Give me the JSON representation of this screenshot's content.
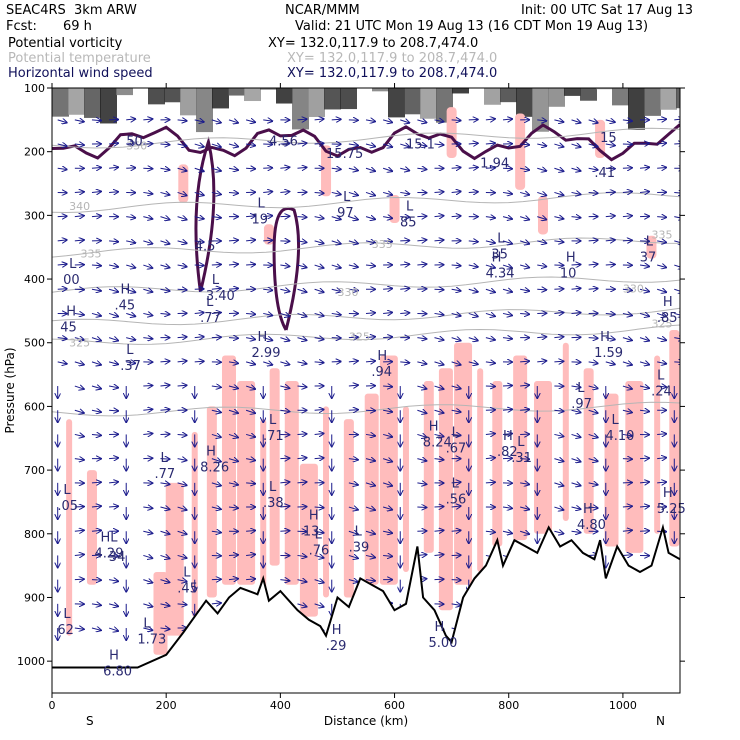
{
  "header": {
    "model": "SEAC4RS  3km ARW",
    "center": "NCAR/MMM",
    "init": "Init: 00 UTC Sat 17 Aug 13",
    "fcst_label": "Fcst:",
    "fcst_value": "69 h",
    "valid": "Valid: 21 UTC Mon 19 Aug 13 (16 CDT Mon 19 Aug 13)",
    "fields": [
      {
        "name": "Potential vorticity",
        "xy": "XY= 132.0,117.9 to 208.7,474.0",
        "color": "#000000"
      },
      {
        "name": "Potential temperature",
        "xy": "XY= 132.0,117.9 to 208.7,474.0",
        "color": "#b8b8b8"
      },
      {
        "name": "Horizontal wind speed",
        "xy": "XY= 132.0,117.9 to 208.7,474.0",
        "color": "#10105a"
      }
    ]
  },
  "chart_data": {
    "type": "heatmap",
    "xlabel": "Distance (km)",
    "ylabel": "Pressure (hPa)",
    "xlim": [
      0,
      1100
    ],
    "ylim": [
      1050,
      100
    ],
    "x_ticks": [
      0,
      200,
      400,
      600,
      800,
      1000
    ],
    "y_ticks": [
      100,
      200,
      300,
      400,
      500,
      600,
      700,
      800,
      900,
      1000
    ],
    "x_end_labels": {
      "left": "S",
      "right": "N"
    },
    "colors": {
      "pv_positive": "#ffbcbc",
      "pv_contour": "#4a0f4a",
      "theta": "#b5b5b5",
      "wind": "#1a1a8c",
      "terrain": "#000000"
    },
    "theta_contours": [
      {
        "label": "325",
        "x": 30,
        "p": 500
      },
      {
        "label": "325",
        "x": 520,
        "p": 490
      },
      {
        "label": "325",
        "x": 1050,
        "p": 470
      },
      {
        "label": "330",
        "x": 500,
        "p": 420
      },
      {
        "label": "330",
        "x": 1000,
        "p": 415
      },
      {
        "label": "335",
        "x": 50,
        "p": 360
      },
      {
        "label": "335",
        "x": 560,
        "p": 345
      },
      {
        "label": "335",
        "x": 1050,
        "p": 330
      },
      {
        "label": "340",
        "x": 30,
        "p": 285
      },
      {
        "label": "350",
        "x": 130,
        "p": 190
      }
    ],
    "extrema": [
      {
        "kind": "L",
        "value": "19",
        "x": 360,
        "p": 300
      },
      {
        "kind": "L",
        "value": "97",
        "x": 510,
        "p": 290
      },
      {
        "kind": "L",
        "value": "85",
        "x": 620,
        "p": 305
      },
      {
        "kind": "L",
        "value": "35",
        "x": 780,
        "p": 355
      },
      {
        "kind": "H",
        "value": "4.34",
        "x": 770,
        "p": 385
      },
      {
        "kind": "H",
        "value": "10",
        "x": 900,
        "p": 385
      },
      {
        "kind": "L",
        "value": "37",
        "x": 1040,
        "p": 360
      },
      {
        "kind": "L",
        "value": "00",
        "x": 30,
        "p": 395
      },
      {
        "kind": "H",
        "value": ".45",
        "x": 120,
        "p": 435
      },
      {
        "kind": "L",
        "value": "3.40",
        "x": 280,
        "p": 420
      },
      {
        "kind": "L",
        "value": ".77",
        "x": 270,
        "p": 455
      },
      {
        "kind": "H",
        "value": "45",
        "x": 25,
        "p": 470
      },
      {
        "kind": "L",
        "value": ".37",
        "x": 130,
        "p": 530
      },
      {
        "kind": "H",
        "value": "2.99",
        "x": 360,
        "p": 510
      },
      {
        "kind": "H",
        "value": ".94",
        "x": 570,
        "p": 540
      },
      {
        "kind": "H",
        "value": "1.59",
        "x": 960,
        "p": 510
      },
      {
        "kind": "H",
        "value": ".85",
        "x": 1070,
        "p": 455
      },
      {
        "kind": "L",
        "value": ".24",
        "x": 1060,
        "p": 570
      },
      {
        "kind": "L",
        "value": ".97",
        "x": 920,
        "p": 590
      },
      {
        "kind": "L",
        "value": "4.10",
        "x": 980,
        "p": 640
      },
      {
        "kind": "L",
        "value": ".71",
        "x": 380,
        "p": 640
      },
      {
        "kind": "H",
        "value": "8.24",
        "x": 660,
        "p": 650
      },
      {
        "kind": "L",
        "value": ".67",
        "x": 700,
        "p": 660
      },
      {
        "kind": "H",
        "value": ".82",
        "x": 790,
        "p": 665
      },
      {
        "kind": "L",
        "value": ".31",
        "x": 815,
        "p": 675
      },
      {
        "kind": "L",
        "value": ".77",
        "x": 190,
        "p": 700
      },
      {
        "kind": "H",
        "value": "8.26",
        "x": 270,
        "p": 690
      },
      {
        "kind": "L",
        "value": ".05",
        "x": 20,
        "p": 750
      },
      {
        "kind": "L",
        "value": ".38",
        "x": 380,
        "p": 745
      },
      {
        "kind": "L",
        "value": ".56",
        "x": 700,
        "p": 740
      },
      {
        "kind": "H",
        "value": "4.80",
        "x": 930,
        "p": 780
      },
      {
        "kind": "H",
        "value": "5.25",
        "x": 1070,
        "p": 755
      },
      {
        "kind": "H",
        "value": "13",
        "x": 450,
        "p": 790
      },
      {
        "kind": "L",
        "value": ".76",
        "x": 460,
        "p": 820
      },
      {
        "kind": "L",
        "value": ".39",
        "x": 530,
        "p": 815
      },
      {
        "kind": "HL",
        "value": "4.29",
        "x": 85,
        "p": 825
      },
      {
        "kind": "",
        "value": "34",
        "x": 110,
        "p": 830
      },
      {
        "kind": "L",
        "value": ".45",
        "x": 230,
        "p": 880
      },
      {
        "kind": "L",
        "value": "62",
        "x": 20,
        "p": 945
      },
      {
        "kind": "L",
        "value": "1.73",
        "x": 160,
        "p": 960
      },
      {
        "kind": "H",
        "value": ".29",
        "x": 490,
        "p": 970
      },
      {
        "kind": "H",
        "value": "5.00",
        "x": 670,
        "p": 965
      },
      {
        "kind": "H",
        "value": "6.80",
        "x": 100,
        "p": 1010
      }
    ],
    "upper_labels": [
      {
        "value": "50",
        "x": 130,
        "p": 190
      },
      {
        "value": "4.56",
        "x": 380,
        "p": 190
      },
      {
        "value": "15.75",
        "x": 480,
        "p": 210
      },
      {
        "value": "15.1",
        "x": 620,
        "p": 195
      },
      {
        "value": "1.94",
        "x": 750,
        "p": 225
      },
      {
        "value": "15",
        "x": 960,
        "p": 185
      },
      {
        "value": ".41",
        "x": 950,
        "p": 240
      },
      {
        "value": "4.5",
        "x": 250,
        "p": 355
      }
    ],
    "terrain": [
      [
        0,
        1010
      ],
      [
        20,
        1010
      ],
      [
        80,
        1010
      ],
      [
        150,
        1010
      ],
      [
        200,
        990
      ],
      [
        230,
        955
      ],
      [
        250,
        930
      ],
      [
        270,
        905
      ],
      [
        290,
        925
      ],
      [
        310,
        900
      ],
      [
        330,
        885
      ],
      [
        360,
        895
      ],
      [
        370,
        870
      ],
      [
        380,
        905
      ],
      [
        400,
        890
      ],
      [
        430,
        920
      ],
      [
        450,
        935
      ],
      [
        470,
        945
      ],
      [
        480,
        960
      ],
      [
        500,
        900
      ],
      [
        520,
        915
      ],
      [
        540,
        870
      ],
      [
        560,
        880
      ],
      [
        580,
        890
      ],
      [
        600,
        920
      ],
      [
        620,
        910
      ],
      [
        640,
        820
      ],
      [
        650,
        900
      ],
      [
        670,
        920
      ],
      [
        690,
        960
      ],
      [
        700,
        970
      ],
      [
        720,
        900
      ],
      [
        740,
        870
      ],
      [
        760,
        850
      ],
      [
        780,
        810
      ],
      [
        790,
        850
      ],
      [
        810,
        810
      ],
      [
        830,
        820
      ],
      [
        850,
        830
      ],
      [
        870,
        790
      ],
      [
        890,
        820
      ],
      [
        910,
        810
      ],
      [
        930,
        830
      ],
      [
        950,
        840
      ],
      [
        960,
        810
      ],
      [
        970,
        870
      ],
      [
        990,
        820
      ],
      [
        1010,
        850
      ],
      [
        1030,
        860
      ],
      [
        1050,
        850
      ],
      [
        1070,
        790
      ],
      [
        1080,
        830
      ],
      [
        1100,
        840
      ]
    ]
  }
}
